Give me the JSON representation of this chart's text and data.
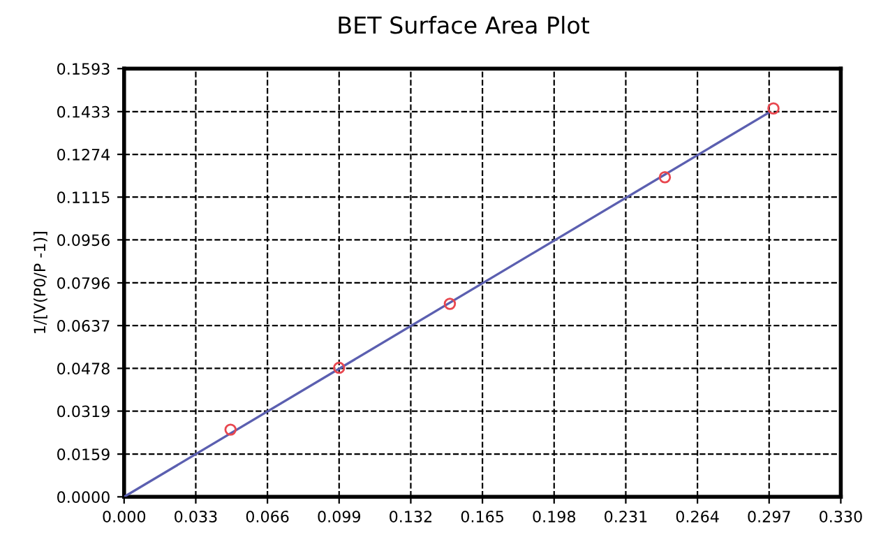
{
  "chart_data": {
    "type": "line",
    "title": "BET Surface Area Plot",
    "ylabel": "1/[V(P0/P -1)]",
    "series": [
      {
        "type": "scatter",
        "color": "#e8474f",
        "marker": "circle",
        "x": [
          0.049,
          0.099,
          0.15,
          0.249,
          0.299
        ],
        "values": [
          0.025,
          0.048,
          0.0718,
          0.1189,
          0.1445
        ]
      },
      {
        "color": "#5b5fb0",
        "marker": "none",
        "x": [
          0.0,
          0.297
        ],
        "values": [
          0.0,
          0.143
        ]
      }
    ],
    "xlim": [
      0,
      0.33
    ],
    "ylim": [
      0,
      0.1593
    ],
    "xticks": [
      {
        "value": 0,
        "label": "0.000"
      },
      {
        "value": 0.033,
        "label": "0.033"
      },
      {
        "value": 0.066,
        "label": "0.066"
      },
      {
        "value": 0.099,
        "label": "0.099"
      },
      {
        "value": 0.132,
        "label": "0.132"
      },
      {
        "value": 0.165,
        "label": "0.165"
      },
      {
        "value": 0.198,
        "label": "0.198"
      },
      {
        "value": 0.231,
        "label": "0.231"
      },
      {
        "value": 0.264,
        "label": "0.264"
      },
      {
        "value": 0.297,
        "label": "0.297"
      },
      {
        "value": 0.33,
        "label": "0.330"
      }
    ],
    "yticks": [
      {
        "value": 0,
        "label": "0.0000"
      },
      {
        "value": 0.0159,
        "label": "0.0159"
      },
      {
        "value": 0.0319,
        "label": "0.0319"
      },
      {
        "value": 0.0478,
        "label": "0.0478"
      },
      {
        "value": 0.0637,
        "label": "0.0637"
      },
      {
        "value": 0.0796,
        "label": "0.0796"
      },
      {
        "value": 0.0956,
        "label": "0.0956"
      },
      {
        "value": 0.1115,
        "label": "0.1115"
      },
      {
        "value": 0.1274,
        "label": "0.1274"
      },
      {
        "value": 0.1433,
        "label": "0.1433"
      },
      {
        "value": 0.1593,
        "label": "0.1593"
      }
    ],
    "grid": true,
    "legend": false
  }
}
